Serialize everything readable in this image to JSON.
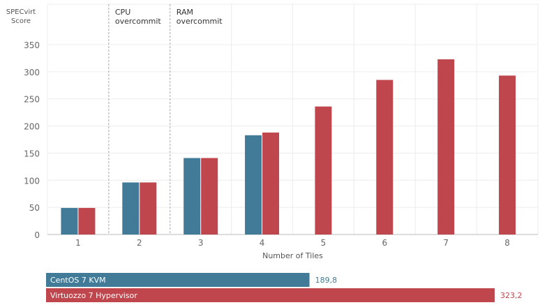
{
  "chart_data": {
    "type": "bar",
    "ylabel": "SPECvirt\nScore",
    "xlabel": "Number of Tiles",
    "categories": [
      "1",
      "2",
      "3",
      "4",
      "5",
      "6",
      "7",
      "8"
    ],
    "ylim": [
      0,
      350
    ],
    "yticks": [
      0,
      50,
      100,
      150,
      200,
      250,
      300,
      350
    ],
    "grid": true,
    "series": [
      {
        "name": "CentOS 7 KVM",
        "color": "#417b98",
        "values": [
          49,
          96,
          141,
          183,
          null,
          null,
          null,
          null
        ]
      },
      {
        "name": "Virtuozzo 7 Hypervisor",
        "color": "#c0464d",
        "values": [
          49,
          96,
          141,
          188,
          236,
          285,
          323,
          293
        ]
      }
    ],
    "annotations": [
      {
        "text": "CPU\novercommit",
        "between_categories": [
          "1",
          "2"
        ]
      },
      {
        "text": "RAM\novercommit",
        "between_categories": [
          "2",
          "3"
        ]
      }
    ],
    "summary_bars": [
      {
        "label": "CentOS 7 KVM",
        "value": 189.8,
        "value_text": "189,8",
        "color": "#417b98"
      },
      {
        "label": "Virtuozzo 7 Hypervisor",
        "value": 323.2,
        "value_text": "323,2",
        "color": "#c0464d"
      }
    ]
  }
}
